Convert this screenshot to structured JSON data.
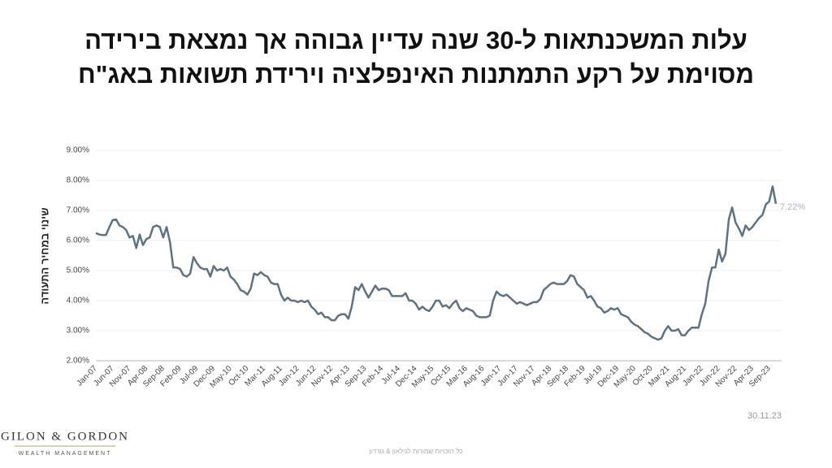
{
  "chart_data": {
    "type": "line",
    "title": [
      "עלות המשכנתאות ל-30 שנה עדיין גבוהה אך נמצאת בירידה",
      "מסוימת על רקע התמתנות האינפלציה וירידת תשואות באג\"ח"
    ],
    "ylabel": "שינוי במחיר התעודה",
    "date_note": "30.11.23",
    "categories": [
      "Jan-07",
      null,
      null,
      null,
      null,
      "Jun-07",
      null,
      null,
      null,
      null,
      "Nov-07",
      null,
      null,
      null,
      null,
      "Apr-08",
      null,
      null,
      null,
      null,
      "Sep-08",
      null,
      null,
      null,
      null,
      "Feb-09",
      null,
      null,
      null,
      null,
      "Jul-09",
      null,
      null,
      null,
      null,
      "Dec-09",
      null,
      null,
      null,
      null,
      "May-10",
      null,
      null,
      null,
      null,
      "Oct-10",
      null,
      null,
      null,
      null,
      "Mar-11",
      null,
      null,
      null,
      null,
      "Aug-11",
      null,
      null,
      null,
      null,
      "Jan-12",
      null,
      null,
      null,
      null,
      "Jun-12",
      null,
      null,
      null,
      null,
      "Nov-12",
      null,
      null,
      null,
      null,
      "Apr-13",
      null,
      null,
      null,
      null,
      "Sep-13",
      null,
      null,
      null,
      null,
      "Feb-14",
      null,
      null,
      null,
      null,
      "Jul-14",
      null,
      null,
      null,
      null,
      "Dec-14",
      null,
      null,
      null,
      null,
      "May-15",
      null,
      null,
      null,
      null,
      "Oct-15",
      null,
      null,
      null,
      null,
      "Mar-16",
      null,
      null,
      null,
      null,
      "Aug-16",
      null,
      null,
      null,
      null,
      "Jan-17",
      null,
      null,
      null,
      null,
      "Jun-17",
      null,
      null,
      null,
      null,
      "Nov-17",
      null,
      null,
      null,
      null,
      "Apr-18",
      null,
      null,
      null,
      null,
      "Sep-18",
      null,
      null,
      null,
      null,
      "Feb-19",
      null,
      null,
      null,
      null,
      "Jul-19",
      null,
      null,
      null,
      null,
      "Dec-19",
      null,
      null,
      null,
      null,
      "May-20",
      null,
      null,
      null,
      null,
      "Oct-20",
      null,
      null,
      null,
      null,
      "Mar-21",
      null,
      null,
      null,
      null,
      "Aug-21",
      null,
      null,
      null,
      null,
      "Jan-22",
      null,
      null,
      null,
      null,
      "Jun-22",
      null,
      null,
      null,
      null,
      "Nov-22",
      null,
      null,
      null,
      null,
      "Apr-23",
      null,
      null,
      null,
      null,
      "Sep-23",
      null,
      null
    ],
    "series": [
      {
        "color": "#5f7282",
        "values": [
          6.25,
          6.2,
          6.18,
          6.18,
          6.45,
          6.68,
          6.7,
          6.5,
          6.45,
          6.35,
          6.1,
          6.15,
          5.75,
          6.2,
          5.85,
          6.05,
          6.1,
          6.45,
          6.5,
          6.45,
          6.1,
          6.45,
          5.95,
          5.1,
          5.1,
          5.05,
          4.85,
          4.8,
          4.9,
          5.45,
          5.25,
          5.1,
          5.05,
          5.05,
          4.8,
          5.15,
          5.0,
          5.05,
          5.0,
          5.1,
          4.8,
          4.7,
          4.55,
          4.35,
          4.3,
          4.2,
          4.4,
          4.9,
          4.85,
          4.95,
          4.85,
          4.8,
          4.6,
          4.55,
          4.55,
          4.2,
          4.0,
          4.1,
          4.0,
          4.0,
          3.95,
          4.0,
          3.95,
          4.0,
          3.8,
          3.7,
          3.55,
          3.6,
          3.45,
          3.45,
          3.35,
          3.35,
          3.5,
          3.55,
          3.55,
          3.4,
          3.8,
          4.45,
          4.35,
          4.55,
          4.3,
          4.1,
          4.3,
          4.5,
          4.35,
          4.4,
          4.4,
          4.35,
          4.15,
          4.15,
          4.15,
          4.15,
          4.25,
          4.0,
          4.0,
          3.9,
          3.7,
          3.8,
          3.7,
          3.65,
          3.8,
          4.0,
          4.0,
          3.8,
          3.85,
          3.75,
          3.9,
          4.0,
          3.75,
          3.65,
          3.75,
          3.7,
          3.65,
          3.5,
          3.45,
          3.45,
          3.45,
          3.5,
          4.0,
          4.3,
          4.2,
          4.15,
          4.2,
          4.1,
          4.0,
          3.9,
          3.95,
          3.9,
          3.85,
          3.9,
          3.95,
          3.95,
          4.05,
          4.35,
          4.45,
          4.55,
          4.6,
          4.55,
          4.55,
          4.55,
          4.65,
          4.85,
          4.8,
          4.55,
          4.45,
          4.35,
          4.1,
          4.15,
          4.0,
          3.8,
          3.75,
          3.6,
          3.65,
          3.75,
          3.7,
          3.75,
          3.55,
          3.5,
          3.45,
          3.3,
          3.2,
          3.15,
          3.05,
          2.95,
          2.9,
          2.8,
          2.75,
          2.7,
          2.75,
          3.0,
          3.15,
          3.0,
          3.0,
          3.05,
          2.85,
          2.85,
          3.0,
          3.1,
          3.1,
          3.1,
          3.55,
          3.9,
          4.65,
          5.1,
          5.1,
          5.7,
          5.3,
          5.55,
          6.7,
          7.1,
          6.6,
          6.4,
          6.15,
          6.5,
          6.35,
          6.45,
          6.6,
          6.75,
          6.85,
          7.2,
          7.3,
          7.8,
          7.22
        ],
        "value_labels": [
          null,
          null,
          null,
          null,
          null,
          null,
          null,
          null,
          null,
          null,
          null,
          null,
          null,
          null,
          null,
          null,
          null,
          null,
          null,
          null,
          null,
          null,
          null,
          null,
          null,
          null,
          null,
          null,
          null,
          null,
          null,
          null,
          null,
          null,
          null,
          null,
          null,
          null,
          null,
          null,
          null,
          null,
          null,
          null,
          null,
          null,
          null,
          null,
          null,
          null,
          null,
          null,
          null,
          null,
          null,
          null,
          null,
          null,
          null,
          null,
          null,
          null,
          null,
          null,
          null,
          null,
          null,
          null,
          null,
          null,
          null,
          null,
          null,
          null,
          null,
          null,
          null,
          null,
          null,
          null,
          null,
          null,
          null,
          null,
          null,
          null,
          null,
          null,
          null,
          null,
          null,
          null,
          null,
          null,
          null,
          null,
          null,
          null,
          null,
          null,
          null,
          null,
          null,
          null,
          null,
          null,
          null,
          null,
          null,
          null,
          null,
          null,
          null,
          null,
          null,
          null,
          null,
          null,
          null,
          null,
          null,
          null,
          null,
          null,
          null,
          null,
          null,
          null,
          null,
          null,
          null,
          null,
          null,
          null,
          null,
          null,
          null,
          null,
          null,
          null,
          null,
          null,
          null,
          null,
          null,
          null,
          null,
          null,
          null,
          null,
          null,
          null,
          null,
          null,
          null,
          null,
          null,
          null,
          null,
          null,
          null,
          null,
          null,
          null,
          null,
          null,
          null,
          null,
          null,
          null,
          null,
          null,
          null,
          null,
          null,
          null,
          null,
          null,
          null,
          null,
          null,
          null,
          null,
          null,
          null,
          null,
          null,
          null,
          null,
          null,
          null,
          null,
          null,
          null,
          null,
          null,
          null,
          null,
          null,
          null,
          null,
          null,
          "7.22%"
        ]
      }
    ],
    "ylim": [
      2,
      9
    ],
    "yticks": [
      {
        "value": 2,
        "label": "2.00%"
      },
      {
        "value": 3,
        "label": "3.00%"
      },
      {
        "value": 4,
        "label": "4.00%"
      },
      {
        "value": 5,
        "label": "5.00%"
      },
      {
        "value": 6,
        "label": "6.00%"
      },
      {
        "value": 7,
        "label": "7.00%"
      },
      {
        "value": 8,
        "label": "8.00%"
      },
      {
        "value": 9,
        "label": "9.00%"
      }
    ],
    "grid": true
  },
  "logo": {
    "name": "GILON & GORDON",
    "tagline": "WEALTH MANAGEMENT"
  },
  "footer": "כל הזכויות שמורות לגילאון & גורדון"
}
